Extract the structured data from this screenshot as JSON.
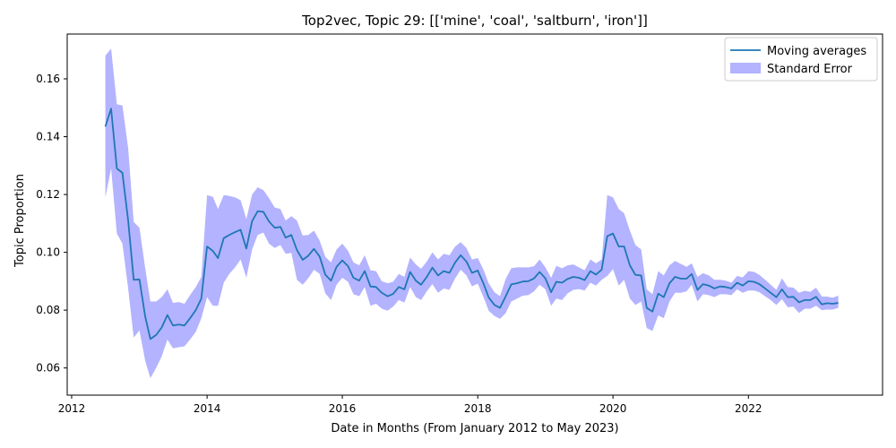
{
  "chart_data": {
    "type": "line",
    "title": "Top2vec, Topic 29: [['mine', 'coal', 'saltburn', 'iron']]",
    "xlabel": "Date in Months (From January 2012 to May 2023)",
    "ylabel": "Topic Proportion",
    "xlim": [
      "2011-12-08",
      "2023-12-26"
    ],
    "ylim": [
      0.0506,
      0.1755
    ],
    "x_ticks": [
      "2012",
      "2014",
      "2016",
      "2018",
      "2020",
      "2022"
    ],
    "y_ticks": [
      "0.06",
      "0.08",
      "0.10",
      "0.12",
      "0.14",
      "0.16"
    ],
    "grid": false,
    "legend_position": "upper right",
    "colors": {
      "line": "#1f77b4",
      "band": "#b3b3ff"
    },
    "series": [
      {
        "name": "Moving averages",
        "kind": "line",
        "x": [
          "2012-07",
          "2012-08",
          "2012-09",
          "2012-10",
          "2012-11",
          "2012-12",
          "2013-01",
          "2013-02",
          "2013-03",
          "2013-04",
          "2013-05",
          "2013-06",
          "2013-07",
          "2013-08",
          "2013-09",
          "2013-10",
          "2013-11",
          "2013-12",
          "2014-01",
          "2014-02",
          "2014-03",
          "2014-04",
          "2014-05",
          "2014-06",
          "2014-07",
          "2014-08",
          "2014-09",
          "2014-10",
          "2014-11",
          "2014-12",
          "2015-01",
          "2015-02",
          "2015-03",
          "2015-04",
          "2015-05",
          "2015-06",
          "2015-07",
          "2015-08",
          "2015-09",
          "2015-10",
          "2015-11",
          "2015-12",
          "2016-01",
          "2016-02",
          "2016-03",
          "2016-04",
          "2016-05",
          "2016-06",
          "2016-07",
          "2016-08",
          "2016-09",
          "2016-10",
          "2016-11",
          "2016-12",
          "2017-01",
          "2017-02",
          "2017-03",
          "2017-04",
          "2017-05",
          "2017-06",
          "2017-07",
          "2017-08",
          "2017-09",
          "2017-10",
          "2017-11",
          "2017-12",
          "2018-01",
          "2018-02",
          "2018-03",
          "2018-04",
          "2018-05",
          "2018-06",
          "2018-07",
          "2018-08",
          "2018-09",
          "2018-10",
          "2018-11",
          "2018-12",
          "2019-01",
          "2019-02",
          "2019-03",
          "2019-04",
          "2019-05",
          "2019-06",
          "2019-07",
          "2019-08",
          "2019-09",
          "2019-10",
          "2019-11",
          "2019-12",
          "2020-01",
          "2020-02",
          "2020-03",
          "2020-04",
          "2020-05",
          "2020-06",
          "2020-07",
          "2020-08",
          "2020-09",
          "2020-10",
          "2020-11",
          "2020-12",
          "2021-01",
          "2021-02",
          "2021-03",
          "2021-04",
          "2021-05",
          "2021-06",
          "2021-07",
          "2021-08",
          "2021-09",
          "2021-10",
          "2021-11",
          "2021-12",
          "2022-01",
          "2022-02",
          "2022-03",
          "2022-04",
          "2022-05",
          "2022-06",
          "2022-07",
          "2022-08",
          "2022-09",
          "2022-10",
          "2022-11",
          "2022-12",
          "2023-01",
          "2023-02",
          "2023-03",
          "2023-04",
          "2023-05"
        ],
        "values": [
          0.1435,
          0.1497,
          0.129,
          0.1275,
          0.111,
          0.0905,
          0.0906,
          0.0778,
          0.07,
          0.0714,
          0.074,
          0.0783,
          0.0747,
          0.075,
          0.0747,
          0.0772,
          0.08,
          0.084,
          0.102,
          0.1005,
          0.098,
          0.1049,
          0.106,
          0.107,
          0.1078,
          0.1013,
          0.1108,
          0.1142,
          0.114,
          0.1107,
          0.1085,
          0.1088,
          0.1051,
          0.106,
          0.1008,
          0.0974,
          0.0988,
          0.1012,
          0.0985,
          0.0923,
          0.0902,
          0.095,
          0.0972,
          0.0952,
          0.0912,
          0.0902,
          0.0935,
          0.0882,
          0.088,
          0.086,
          0.0848,
          0.0856,
          0.088,
          0.0872,
          0.0932,
          0.0902,
          0.0888,
          0.0915,
          0.0947,
          0.092,
          0.0935,
          0.0929,
          0.0965,
          0.099,
          0.0968,
          0.0929,
          0.0937,
          0.0892,
          0.0844,
          0.0818,
          0.0808,
          0.0848,
          0.0889,
          0.0893,
          0.0899,
          0.09,
          0.091,
          0.0932,
          0.091,
          0.0862,
          0.0898,
          0.0895,
          0.0908,
          0.0915,
          0.0912,
          0.0904,
          0.0935,
          0.0923,
          0.094,
          0.1056,
          0.1065,
          0.102,
          0.102,
          0.0955,
          0.0922,
          0.092,
          0.0808,
          0.0795,
          0.0857,
          0.0845,
          0.0893,
          0.0915,
          0.0909,
          0.0909,
          0.0925,
          0.087,
          0.089,
          0.0885,
          0.0875,
          0.0882,
          0.088,
          0.0875,
          0.0895,
          0.0885,
          0.09,
          0.0898,
          0.089,
          0.0875,
          0.086,
          0.0845,
          0.0872,
          0.0845,
          0.0846,
          0.0827,
          0.0835,
          0.0835,
          0.0846,
          0.082,
          0.0824,
          0.0822,
          0.0825
        ]
      },
      {
        "name": "Standard Error",
        "kind": "band",
        "upper": [
          0.168,
          0.1705,
          0.1512,
          0.1508,
          0.136,
          0.1105,
          0.1085,
          0.0945,
          0.083,
          0.083,
          0.0845,
          0.0872,
          0.0825,
          0.0828,
          0.0822,
          0.0852,
          0.088,
          0.0915,
          0.1198,
          0.1192,
          0.115,
          0.1198,
          0.1195,
          0.119,
          0.118,
          0.1115,
          0.12,
          0.1225,
          0.1215,
          0.1188,
          0.1155,
          0.115,
          0.111,
          0.1125,
          0.111,
          0.1058,
          0.106,
          0.1075,
          0.104,
          0.0985,
          0.0965,
          0.101,
          0.103,
          0.1005,
          0.0965,
          0.0955,
          0.099,
          0.0938,
          0.0935,
          0.09,
          0.0893,
          0.0898,
          0.0925,
          0.0915,
          0.0982,
          0.0958,
          0.0943,
          0.0968,
          0.1,
          0.0975,
          0.0995,
          0.099,
          0.102,
          0.1035,
          0.1015,
          0.0975,
          0.098,
          0.094,
          0.0893,
          0.0862,
          0.0848,
          0.0908,
          0.0945,
          0.0948,
          0.0948,
          0.0948,
          0.0952,
          0.0975,
          0.0948,
          0.0912,
          0.0953,
          0.0945,
          0.0955,
          0.0958,
          0.0948,
          0.0938,
          0.0975,
          0.0962,
          0.0975,
          0.1198,
          0.119,
          0.115,
          0.1135,
          0.1075,
          0.1025,
          0.101,
          0.0872,
          0.0855,
          0.0935,
          0.092,
          0.0955,
          0.097,
          0.096,
          0.095,
          0.0962,
          0.0915,
          0.0928,
          0.092,
          0.0905,
          0.0905,
          0.0902,
          0.0895,
          0.0918,
          0.0913,
          0.0935,
          0.0932,
          0.0922,
          0.0905,
          0.0888,
          0.087,
          0.091,
          0.088,
          0.0878,
          0.086,
          0.0867,
          0.0863,
          0.0878,
          0.0847,
          0.0847,
          0.0843,
          0.085
        ],
        "lower": [
          0.119,
          0.129,
          0.1065,
          0.103,
          0.0875,
          0.0705,
          0.073,
          0.0625,
          0.0565,
          0.06,
          0.064,
          0.0698,
          0.0668,
          0.0672,
          0.0675,
          0.0698,
          0.0725,
          0.0772,
          0.0845,
          0.0815,
          0.0815,
          0.0895,
          0.0925,
          0.0948,
          0.0975,
          0.0912,
          0.101,
          0.106,
          0.1068,
          0.103,
          0.1015,
          0.1025,
          0.0995,
          0.0998,
          0.0905,
          0.0888,
          0.091,
          0.094,
          0.0925,
          0.0858,
          0.0835,
          0.0888,
          0.0912,
          0.0898,
          0.0855,
          0.0848,
          0.088,
          0.0815,
          0.0822,
          0.0805,
          0.0798,
          0.0812,
          0.0835,
          0.0826,
          0.088,
          0.0845,
          0.0835,
          0.0865,
          0.089,
          0.086,
          0.0875,
          0.087,
          0.091,
          0.094,
          0.092,
          0.0882,
          0.0892,
          0.0845,
          0.0798,
          0.078,
          0.077,
          0.079,
          0.083,
          0.084,
          0.085,
          0.0852,
          0.0865,
          0.0888,
          0.0872,
          0.0815,
          0.084,
          0.0835,
          0.0858,
          0.087,
          0.0873,
          0.0868,
          0.0895,
          0.0885,
          0.0905,
          0.0918,
          0.0942,
          0.0885,
          0.0905,
          0.084,
          0.0818,
          0.083,
          0.0738,
          0.0728,
          0.0782,
          0.0772,
          0.083,
          0.086,
          0.086,
          0.0865,
          0.0888,
          0.083,
          0.0855,
          0.0852,
          0.0845,
          0.0855,
          0.0855,
          0.0852,
          0.0872,
          0.086,
          0.0868,
          0.0868,
          0.0862,
          0.0848,
          0.0835,
          0.0818,
          0.0838,
          0.081,
          0.0812,
          0.079,
          0.0805,
          0.0805,
          0.0815,
          0.08,
          0.0802,
          0.0802,
          0.0808
        ]
      }
    ]
  }
}
